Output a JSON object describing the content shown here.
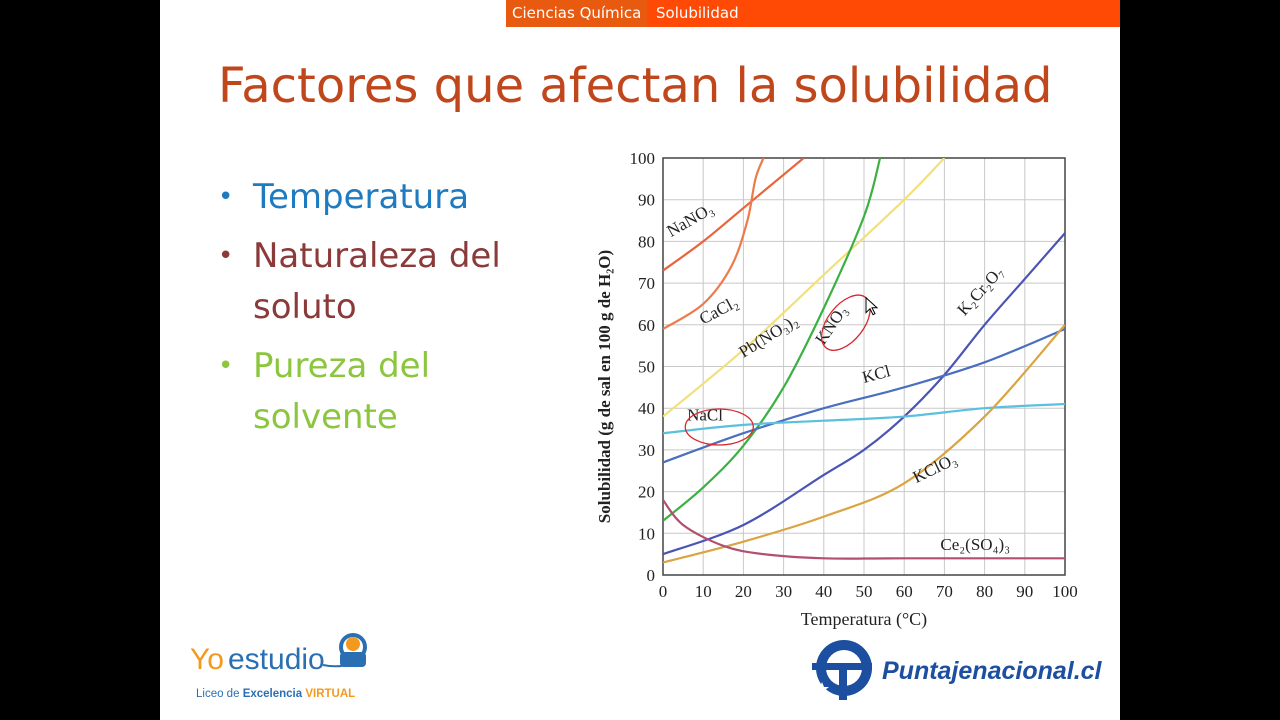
{
  "header": {
    "breadcrumb_section": "Ciencias Química",
    "breadcrumb_page": "Solubilidad"
  },
  "slide": {
    "title": "Factores que afectan la solubilidad"
  },
  "bullets": [
    {
      "text": "Temperatura",
      "color": "#1f7bbf"
    },
    {
      "text": "Naturaleza del soluto",
      "color": "#8b3a3a"
    },
    {
      "text": "Pureza del solvente",
      "color": "#8cc63f"
    }
  ],
  "logos": {
    "yo_estudio_word1": "Yo",
    "yo_estudio_word2": "estudio",
    "yo_estudio_sub1": "Liceo de ",
    "yo_estudio_sub2": "Excelencia",
    "yo_estudio_sub3": " VIRTUAL",
    "puntaje": "Puntajenacional.cl"
  },
  "chart_data": {
    "type": "line",
    "xlabel": "Temperatura (°C)",
    "ylabel": "Solubilidad (g de sal en 100 g de H₂O)",
    "xlim": [
      0,
      100
    ],
    "ylim": [
      0,
      100
    ],
    "x_ticks": [
      0,
      10,
      20,
      30,
      40,
      50,
      60,
      70,
      80,
      90,
      100
    ],
    "y_ticks": [
      0,
      10,
      20,
      30,
      40,
      50,
      60,
      70,
      80,
      90,
      100
    ],
    "grid": true,
    "series": [
      {
        "name": "NaNO₃",
        "color": "#e8643c",
        "points": [
          [
            0,
            73
          ],
          [
            10,
            80
          ],
          [
            20,
            88
          ],
          [
            30,
            96
          ],
          [
            35,
            100
          ]
        ]
      },
      {
        "name": "CaCl₂",
        "color": "#ee7a4a",
        "points": [
          [
            0,
            59
          ],
          [
            10,
            65
          ],
          [
            17,
            74
          ],
          [
            21,
            85
          ],
          [
            23,
            95
          ],
          [
            25,
            100
          ]
        ]
      },
      {
        "name": "Pb(NO₃)₂",
        "color": "#f2e07a",
        "points": [
          [
            0,
            38
          ],
          [
            20,
            54
          ],
          [
            40,
            72
          ],
          [
            60,
            90
          ],
          [
            70,
            100
          ]
        ]
      },
      {
        "name": "KNO₃",
        "color": "#3cb043",
        "points": [
          [
            0,
            13
          ],
          [
            10,
            21
          ],
          [
            20,
            31
          ],
          [
            30,
            45
          ],
          [
            40,
            64
          ],
          [
            50,
            86
          ],
          [
            54,
            100
          ]
        ]
      },
      {
        "name": "K₂Cr₂O₇",
        "color": "#4a54b4",
        "points": [
          [
            0,
            5
          ],
          [
            20,
            12
          ],
          [
            40,
            24
          ],
          [
            50,
            30
          ],
          [
            60,
            38
          ],
          [
            70,
            48
          ],
          [
            80,
            60
          ],
          [
            90,
            71
          ],
          [
            100,
            82
          ]
        ]
      },
      {
        "name": "KCl",
        "color": "#4a6fbf",
        "points": [
          [
            0,
            27
          ],
          [
            20,
            34
          ],
          [
            40,
            40
          ],
          [
            60,
            45
          ],
          [
            80,
            51
          ],
          [
            100,
            59
          ]
        ]
      },
      {
        "name": "NaCl",
        "color": "#5bc0de",
        "points": [
          [
            0,
            34
          ],
          [
            20,
            36
          ],
          [
            40,
            37
          ],
          [
            60,
            38
          ],
          [
            80,
            40
          ],
          [
            100,
            41
          ]
        ]
      },
      {
        "name": "KClO₃",
        "color": "#d9a441",
        "points": [
          [
            0,
            3
          ],
          [
            20,
            8
          ],
          [
            40,
            14
          ],
          [
            60,
            22
          ],
          [
            80,
            38
          ],
          [
            100,
            60
          ]
        ]
      },
      {
        "name": "Ce₂(SO₄)₃",
        "color": "#b2506e",
        "points": [
          [
            0,
            18
          ],
          [
            5,
            12
          ],
          [
            15,
            7
          ],
          [
            25,
            5
          ],
          [
            40,
            4
          ],
          [
            60,
            4
          ],
          [
            100,
            4
          ]
        ]
      }
    ],
    "annotations": [
      {
        "text": "NaNO₃",
        "x": 2,
        "y": 81,
        "angle": -30,
        "series": 0
      },
      {
        "text": "CaCl₂",
        "x": 10,
        "y": 60,
        "angle": -28,
        "series": 1
      },
      {
        "text": "Pb(NO₃)₂",
        "x": 20,
        "y": 52,
        "angle": -32,
        "series": 2
      },
      {
        "text": "KNO₃",
        "x": 40,
        "y": 55,
        "angle": -56,
        "series": 3
      },
      {
        "text": "K₂Cr₂O₇",
        "x": 75,
        "y": 62,
        "angle": -48,
        "series": 4
      },
      {
        "text": "KCl",
        "x": 50,
        "y": 46,
        "angle": -15,
        "series": 5
      },
      {
        "text": "NaCl",
        "x": 6,
        "y": 37,
        "angle": 0,
        "series": 6
      },
      {
        "text": "KClO₃",
        "x": 63,
        "y": 22,
        "angle": -26,
        "series": 7
      },
      {
        "text": "Ce₂(SO₄)₃",
        "x": 69,
        "y": 6,
        "angle": 0,
        "series": 8
      }
    ]
  }
}
